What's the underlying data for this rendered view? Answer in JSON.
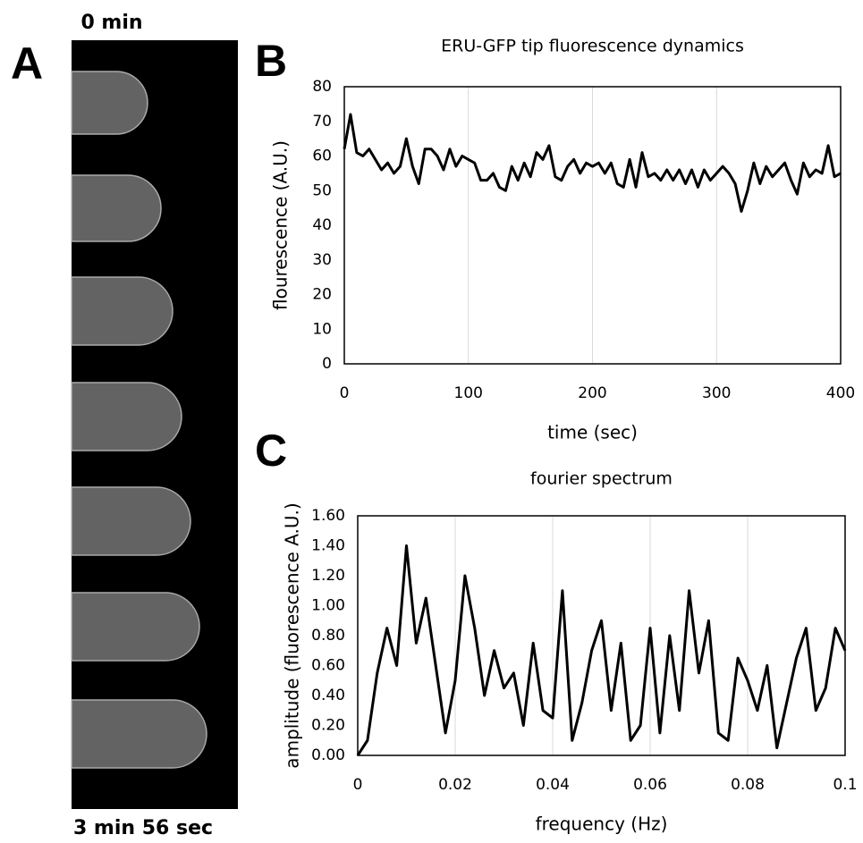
{
  "figure": {
    "panels": [
      "A",
      "B",
      "C"
    ],
    "start_label": "0 min",
    "end_label": "3 min 56 sec"
  },
  "chart_data": [
    {
      "type": "line",
      "title": "ERU-GFP tip fluorescence dynamics",
      "x_label": "time (sec)",
      "y_label": "flourescence (A.U.)",
      "x": [
        0,
        5,
        10,
        15,
        20,
        25,
        30,
        35,
        40,
        45,
        50,
        55,
        60,
        65,
        70,
        75,
        80,
        85,
        90,
        95,
        100,
        105,
        110,
        115,
        120,
        125,
        130,
        135,
        140,
        145,
        150,
        155,
        160,
        165,
        170,
        175,
        180,
        185,
        190,
        195,
        200,
        205,
        210,
        215,
        220,
        225,
        230,
        235,
        240,
        245,
        250,
        255,
        260,
        265,
        270,
        275,
        280,
        285,
        290,
        295,
        300,
        305,
        310,
        315,
        320,
        325,
        330,
        335,
        340,
        345,
        350,
        355,
        360,
        365,
        370,
        375,
        380,
        385,
        390,
        395,
        400
      ],
      "values": [
        62,
        72,
        61,
        60,
        62,
        59,
        56,
        58,
        55,
        57,
        65,
        57,
        52,
        62,
        62,
        60,
        56,
        62,
        57,
        60,
        59,
        58,
        53,
        53,
        55,
        51,
        50,
        57,
        53,
        58,
        54,
        61,
        59,
        63,
        54,
        53,
        57,
        59,
        55,
        58,
        57,
        58,
        55,
        58,
        52,
        51,
        59,
        51,
        61,
        54,
        55,
        53,
        56,
        53,
        56,
        52,
        56,
        51,
        56,
        53,
        55,
        57,
        55,
        52,
        44,
        50,
        58,
        52,
        57,
        54,
        56,
        58,
        53,
        49,
        58,
        54,
        56,
        55,
        63,
        54,
        55
      ],
      "color": "#000000",
      "xlim": [
        0,
        400
      ],
      "ylim": [
        0,
        80
      ],
      "xticks": [
        0,
        100,
        200,
        300,
        400
      ],
      "yticks": [
        0,
        10,
        20,
        30,
        40,
        50,
        60,
        70,
        80
      ],
      "grid": "x"
    },
    {
      "type": "line",
      "title": "fourier spectrum",
      "x_label": "frequency (Hz)",
      "y_label": "amplitude (fluorescence A.U.)",
      "x": [
        0,
        0.002,
        0.004,
        0.006,
        0.008,
        0.01,
        0.012,
        0.014,
        0.016,
        0.018,
        0.02,
        0.022,
        0.024,
        0.026,
        0.028,
        0.03,
        0.032,
        0.034,
        0.036,
        0.038,
        0.04,
        0.042,
        0.044,
        0.046,
        0.048,
        0.05,
        0.052,
        0.054,
        0.056,
        0.058,
        0.06,
        0.062,
        0.064,
        0.066,
        0.068,
        0.07,
        0.072,
        0.074,
        0.076,
        0.078,
        0.08,
        0.082,
        0.084,
        0.086,
        0.088,
        0.09,
        0.092,
        0.094,
        0.096,
        0.098,
        0.1
      ],
      "values": [
        0,
        0.1,
        0.55,
        0.85,
        0.6,
        1.4,
        0.75,
        1.05,
        0.6,
        0.15,
        0.5,
        1.2,
        0.85,
        0.4,
        0.7,
        0.45,
        0.55,
        0.2,
        0.75,
        0.3,
        0.25,
        1.1,
        0.1,
        0.35,
        0.7,
        0.9,
        0.3,
        0.75,
        0.1,
        0.2,
        0.85,
        0.15,
        0.8,
        0.3,
        1.1,
        0.55,
        0.9,
        0.15,
        0.1,
        0.65,
        0.5,
        0.3,
        0.6,
        0.05,
        0.35,
        0.65,
        0.85,
        0.3,
        0.45,
        0.85,
        0.7
      ],
      "color": "#000000",
      "xlim": [
        0,
        0.1
      ],
      "ylim": [
        0,
        1.6
      ],
      "xticks": [
        0,
        0.02,
        0.04,
        0.06,
        0.08,
        0.1
      ],
      "yticks": [
        {
          "value": 0,
          "label": "0.00"
        },
        {
          "value": 0.2,
          "label": "0.20"
        },
        {
          "value": 0.4,
          "label": "0.40"
        },
        {
          "value": 0.6,
          "label": "0.60"
        },
        {
          "value": 0.8,
          "label": "0.80"
        },
        {
          "value": 1,
          "label": "1.00"
        },
        {
          "value": 1.2,
          "label": "1.20"
        },
        {
          "value": 1.4,
          "label": "1.40"
        },
        {
          "value": 1.6,
          "label": "1.60"
        }
      ],
      "grid": "x"
    }
  ]
}
